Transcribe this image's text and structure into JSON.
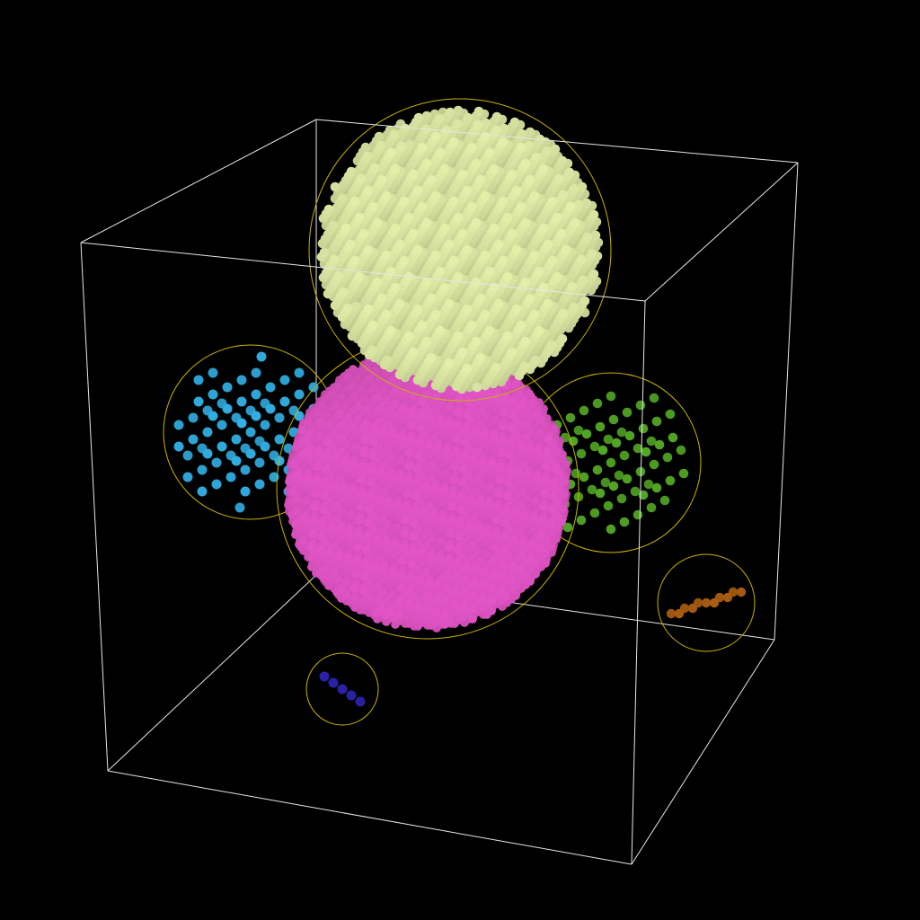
{
  "scene": {
    "background_color": "#000000",
    "box_edge_color": "#e6e6e6",
    "circle_outline_color": "#c8b400",
    "clusters": [
      {
        "name": "cream",
        "color": "#d2dc9c"
      },
      {
        "name": "magenta",
        "color": "#d24fb8"
      },
      {
        "name": "cyan",
        "color": "#2ea6d8"
      },
      {
        "name": "green",
        "color": "#4e9e22"
      },
      {
        "name": "orange",
        "color": "#a55a10"
      },
      {
        "name": "blue",
        "color": "#2a22a6"
      }
    ]
  }
}
